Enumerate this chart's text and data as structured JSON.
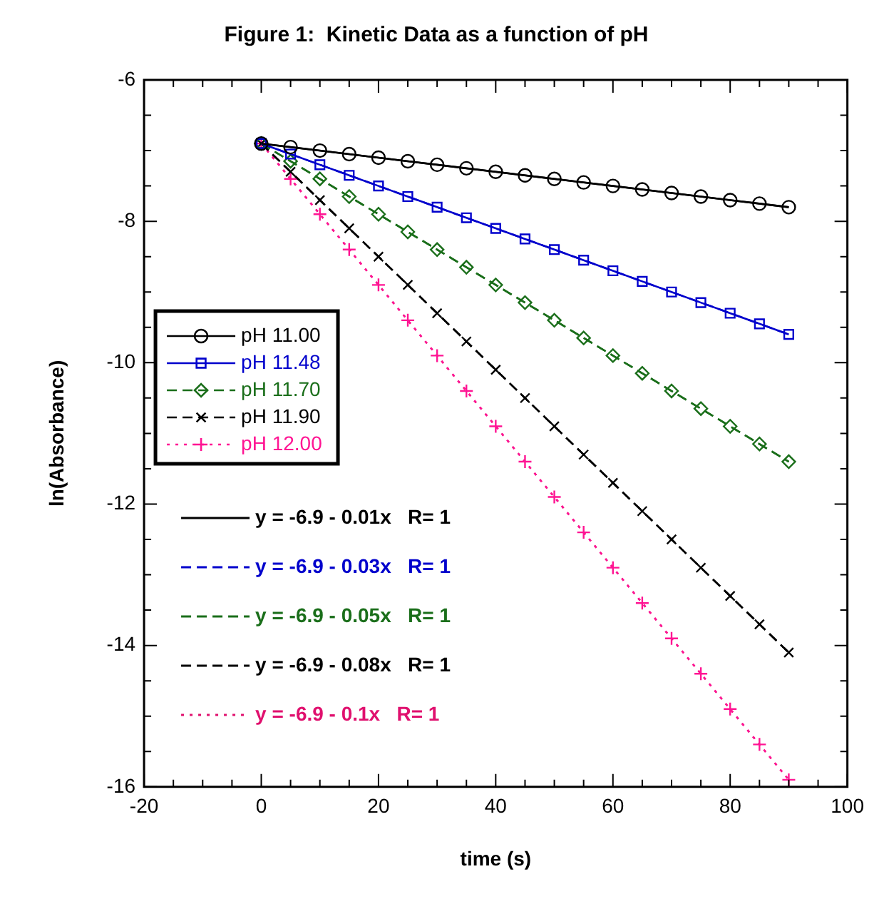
{
  "chart_data": {
    "type": "line",
    "title": "Figure 1:  Kinetic Data as a function of pH",
    "xlabel": "time (s)",
    "ylabel": "ln(Absorbance)",
    "xlim": [
      -20,
      100
    ],
    "ylim": [
      -16,
      -6
    ],
    "xticks": [
      -20,
      {
        "value": -15,
        "label": null
      },
      {
        "value": -10,
        "label": null
      },
      {
        "value": -5,
        "label": null
      },
      0,
      {
        "value": 5,
        "label": null
      },
      {
        "value": 10,
        "label": null
      },
      {
        "value": 15,
        "label": null
      },
      20,
      {
        "value": 25,
        "label": null
      },
      {
        "value": 30,
        "label": null
      },
      {
        "value": 35,
        "label": null
      },
      40,
      {
        "value": 45,
        "label": null
      },
      {
        "value": 50,
        "label": null
      },
      {
        "value": 55,
        "label": null
      },
      60,
      {
        "value": 65,
        "label": null
      },
      {
        "value": 70,
        "label": null
      },
      {
        "value": 75,
        "label": null
      },
      80,
      {
        "value": 85,
        "label": null
      },
      {
        "value": 90,
        "label": null
      },
      {
        "value": 95,
        "label": null
      },
      100
    ],
    "yticks": [
      -16,
      {
        "value": -15.5,
        "label": null
      },
      {
        "value": -15,
        "label": null
      },
      {
        "value": -14.5,
        "label": null
      },
      -14,
      {
        "value": -13.5,
        "label": null
      },
      {
        "value": -13,
        "label": null
      },
      {
        "value": -12.5,
        "label": null
      },
      -12,
      {
        "value": -11.5,
        "label": null
      },
      {
        "value": -11,
        "label": null
      },
      {
        "value": -10.5,
        "label": null
      },
      -10,
      {
        "value": -9.5,
        "label": null
      },
      {
        "value": -9,
        "label": null
      },
      {
        "value": -8.5,
        "label": null
      },
      -8,
      {
        "value": -7.5,
        "label": null
      },
      {
        "value": -7,
        "label": null
      },
      {
        "value": -6.5,
        "label": null
      },
      -6
    ],
    "grid": false,
    "legend": "left",
    "series": [
      {
        "name": "pH 11.00",
        "color": "#000000",
        "marker": "circle",
        "line_style": "solid",
        "x": [
          0,
          5,
          10,
          15,
          20,
          25,
          30,
          35,
          40,
          45,
          50,
          55,
          60,
          65,
          70,
          75,
          80,
          85,
          90
        ],
        "values": [
          -6.9,
          -6.95,
          -7.0,
          -7.05,
          -7.1,
          -7.15,
          -7.2,
          -7.25,
          -7.3,
          -7.35,
          -7.4,
          -7.45,
          -7.5,
          -7.55,
          -7.6,
          -7.65,
          -7.7,
          -7.75,
          -7.8
        ]
      },
      {
        "name": "pH 11.48",
        "color": "#0000cc",
        "marker": "square",
        "line_style": "solid",
        "x": [
          0,
          5,
          10,
          15,
          20,
          25,
          30,
          35,
          40,
          45,
          50,
          55,
          60,
          65,
          70,
          75,
          80,
          85,
          90
        ],
        "values": [
          -6.9,
          -7.05,
          -7.2,
          -7.35,
          -7.5,
          -7.65,
          -7.8,
          -7.95,
          -8.1,
          -8.25,
          -8.4,
          -8.55,
          -8.7,
          -8.85,
          -9.0,
          -9.15,
          -9.3,
          -9.45,
          -9.6
        ]
      },
      {
        "name": "pH 11.70",
        "color": "#1a6e1a",
        "marker": "diamond",
        "line_style": "dashed",
        "x": [
          0,
          5,
          10,
          15,
          20,
          25,
          30,
          35,
          40,
          45,
          50,
          55,
          60,
          65,
          70,
          75,
          80,
          85,
          90
        ],
        "values": [
          -6.9,
          -7.15,
          -7.4,
          -7.65,
          -7.9,
          -8.15,
          -8.4,
          -8.65,
          -8.9,
          -9.15,
          -9.4,
          -9.65,
          -9.9,
          -10.15,
          -10.4,
          -10.65,
          -10.9,
          -11.15,
          -11.4
        ]
      },
      {
        "name": "pH 11.90",
        "color": "#000000",
        "marker": "x",
        "line_style": "dashed",
        "x": [
          0,
          5,
          10,
          15,
          20,
          25,
          30,
          35,
          40,
          45,
          50,
          55,
          60,
          65,
          70,
          75,
          80,
          85,
          90
        ],
        "values": [
          -6.9,
          -7.3,
          -7.7,
          -8.1,
          -8.5,
          -8.9,
          -9.3,
          -9.7,
          -10.1,
          -10.5,
          -10.9,
          -11.3,
          -11.7,
          -12.1,
          -12.5,
          -12.9,
          -13.3,
          -13.7,
          -14.1
        ]
      },
      {
        "name": "pH 12.00",
        "color": "#ff1493",
        "marker": "cross",
        "line_style": "dotted",
        "x": [
          0,
          5,
          10,
          15,
          20,
          25,
          30,
          35,
          40,
          45,
          50,
          55,
          60,
          65,
          70,
          75,
          80,
          85,
          90
        ],
        "values": [
          -6.9,
          -7.4,
          -7.9,
          -8.4,
          -8.9,
          -9.4,
          -9.9,
          -10.4,
          -10.9,
          -11.4,
          -11.9,
          -12.4,
          -12.9,
          -13.4,
          -13.9,
          -14.4,
          -14.9,
          -15.4,
          -15.9
        ]
      },
      {
        "name": "y = -6.9 - 0.01x   R= 1",
        "type": "line",
        "color": "#000000",
        "marker": "none",
        "line_style": "solid",
        "x": [
          0,
          90
        ],
        "values": [
          -6.9,
          -7.8
        ]
      },
      {
        "name": "y = -6.9 - 0.03x   R= 1",
        "type": "line",
        "color": "#0000cc",
        "marker": "none",
        "line_style": "dashed",
        "x": [
          0,
          90
        ],
        "values": [
          -6.9,
          -9.6
        ]
      },
      {
        "name": "y = -6.9 - 0.05x   R= 1",
        "type": "line",
        "color": "#1a6e1a",
        "marker": "none",
        "line_style": "dashed",
        "x": [
          0,
          90
        ],
        "values": [
          -6.9,
          -11.4
        ]
      },
      {
        "name": "y = -6.9 - 0.08x   R= 1",
        "type": "line",
        "color": "#000000",
        "marker": "none",
        "line_style": "dashed",
        "x": [
          0,
          90
        ],
        "values": [
          -6.9,
          -14.1
        ]
      },
      {
        "name": "y = -6.9 - 0.1x   R= 1",
        "type": "line",
        "color": "#e0106e",
        "marker": "none",
        "line_style": "dotted",
        "x": [
          0,
          90
        ],
        "values": [
          -6.9,
          -15.9
        ]
      }
    ]
  }
}
